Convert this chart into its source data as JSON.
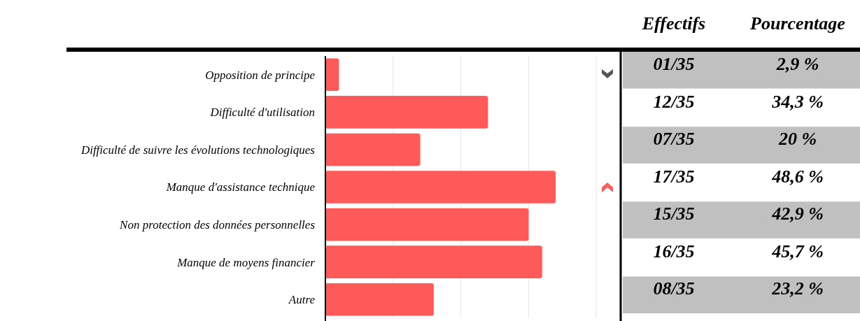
{
  "chart_data": {
    "type": "bar",
    "orientation": "horizontal",
    "categories": [
      "Opposition de principe",
      "Difficulté d'utilisation",
      "Difficulté de suivre les évolutions technologiques",
      "Manque d'assistance technique",
      "Non protection des données personnelles",
      "Manque de moyens financier",
      "Autre"
    ],
    "values": [
      1,
      12,
      7,
      17,
      15,
      16,
      8
    ],
    "value_labels": [
      "01/35",
      "12/35",
      "07/35",
      "17/35",
      "15/35",
      "16/35",
      "08/35"
    ],
    "color": "#ff5a5a",
    "xlim": [
      0,
      21.7
    ],
    "xticks": [
      {
        "value": 5,
        "label": null
      },
      {
        "value": 10,
        "label": null
      },
      {
        "value": 15,
        "label": null
      },
      {
        "value": 20,
        "label": null
      }
    ],
    "tick_labels": "y",
    "grid": "x",
    "annotations": [
      "Effectifs",
      "Pourcentage",
      "2,9 %",
      "34,3 %",
      "20 %",
      "48,6 %",
      "42,9 %",
      "45,7 %",
      "23,2 %"
    ]
  }
}
